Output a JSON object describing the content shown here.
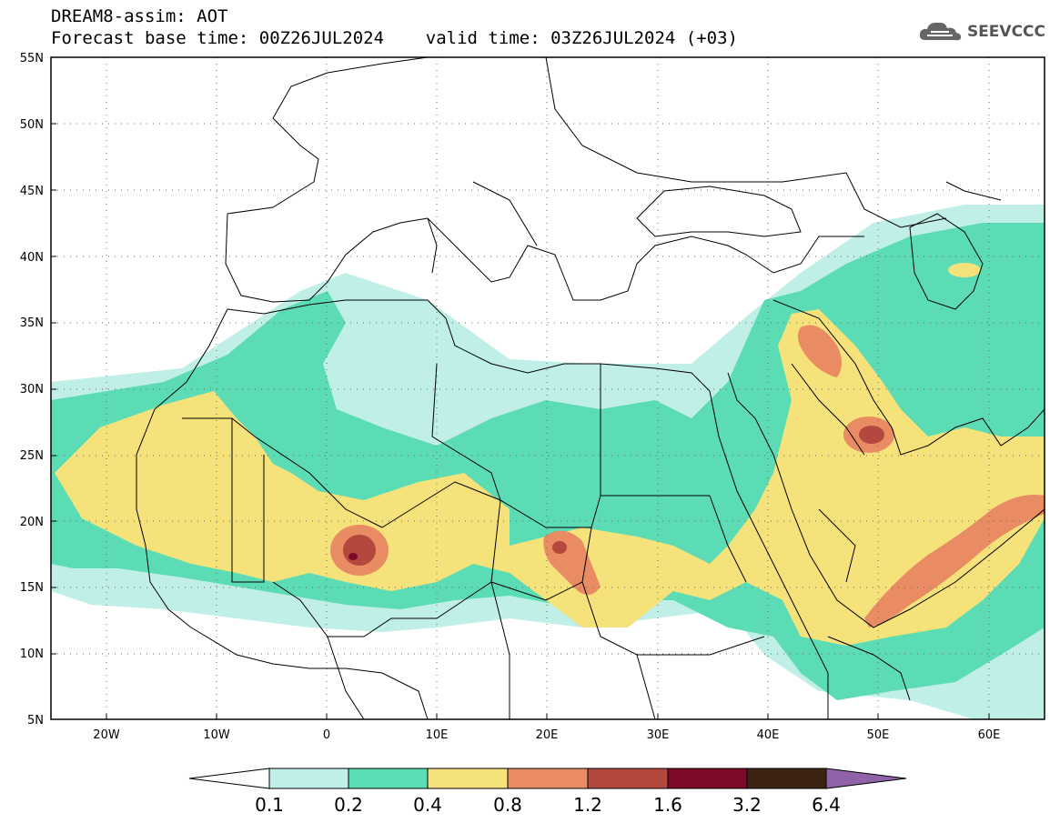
{
  "header": {
    "line1": "DREAM8-assim: AOT",
    "line2": "Forecast base time: 00Z26JUL2024    valid time: 03Z26JUL2024 (+03)",
    "logo_text": "SEEVCCC",
    "logo_icon": "cloud-icon"
  },
  "map": {
    "lon_range": [
      -25,
      65
    ],
    "lat_range": [
      5,
      55
    ],
    "lat_labels": [
      "5N",
      "10N",
      "15N",
      "20N",
      "25N",
      "30N",
      "35N",
      "40N",
      "45N",
      "50N",
      "55N"
    ],
    "lon_labels": [
      "20W",
      "10W",
      "0",
      "10E",
      "20E",
      "30E",
      "40E",
      "50E",
      "60E"
    ],
    "grid": "dotted"
  },
  "colorbar": {
    "labels": [
      "0.1",
      "0.2",
      "0.4",
      "0.8",
      "1.2",
      "1.6",
      "3.2",
      "6.4"
    ],
    "colors": [
      "#ffffff",
      "#bfefe6",
      "#5cdcb4",
      "#f5e27a",
      "#e98b63",
      "#b4483e",
      "#7e0a2a",
      "#3d2314",
      "#8f63a8"
    ]
  },
  "legend_colors": {
    "c1": "#bfefe6",
    "c2": "#5cdcb4",
    "c3": "#f5e27a",
    "c4": "#e98b63",
    "c5": "#b4483e",
    "c6": "#7e0a2a"
  }
}
